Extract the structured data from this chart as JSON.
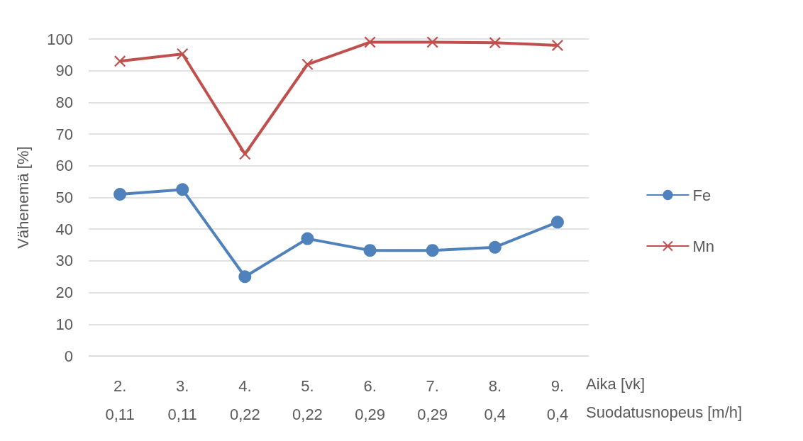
{
  "chart_data": {
    "type": "line",
    "ylabel": "Vähenemä [%]",
    "xlabel": "Aika [vk]\nSuodatusnopeus [m/h]",
    "categories": [
      "2.\n0,11",
      "3.\n0,11",
      "4.\n0,22",
      "5.\n0,22",
      "6.\n0,29",
      "7.\n0,29",
      "8.\n0,4",
      "9.\n0,4"
    ],
    "series": [
      {
        "name": "Fe",
        "color": "#4f81bd",
        "marker": "circle",
        "values": [
          51,
          52.5,
          25,
          37,
          33.3,
          33.3,
          34.3,
          42.2
        ]
      },
      {
        "name": "Mn",
        "color": "#c0504d",
        "marker": "cross",
        "values": [
          93,
          95.3,
          63.7,
          92,
          99,
          99,
          98.8,
          98
        ]
      }
    ],
    "ylim": [
      0,
      100
    ],
    "yticks": [
      0,
      10,
      20,
      30,
      40,
      50,
      60,
      70,
      80,
      90,
      100
    ],
    "grid": "y",
    "legend": "right"
  }
}
